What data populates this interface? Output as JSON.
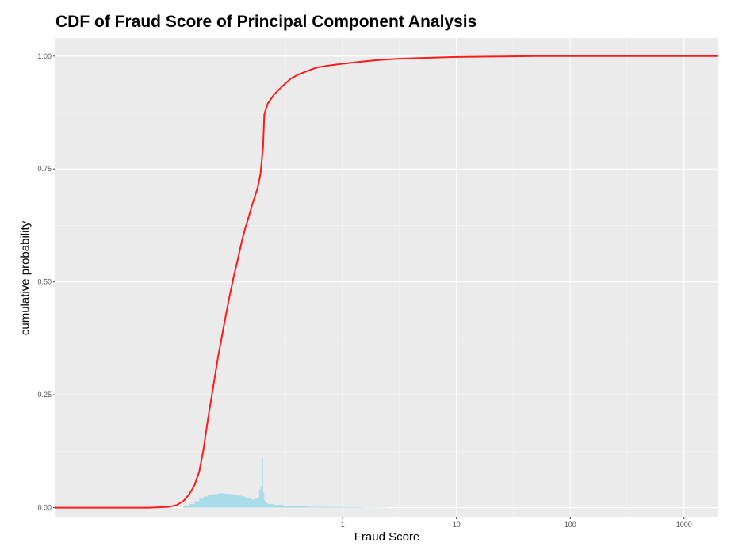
{
  "chart_data": {
    "type": "line",
    "title": "CDF of Fraud Score of Principal Component Analysis",
    "xlabel": "Fraud Score",
    "ylabel": "cumulative probability",
    "x_scale": "log10",
    "xlim": [
      0.003,
      2000
    ],
    "ylim": [
      -0.02,
      1.04
    ],
    "x_ticks": [
      {
        "value": 1,
        "label": "1"
      },
      {
        "value": 10,
        "label": "10"
      },
      {
        "value": 100,
        "label": "100"
      },
      {
        "value": 1000,
        "label": "1000"
      }
    ],
    "y_ticks": [
      {
        "value": 0,
        "label": "0.00"
      },
      {
        "value": 0.25,
        "label": "0.25"
      },
      {
        "value": 0.5,
        "label": "0.50"
      },
      {
        "value": 0.75,
        "label": "0.75"
      },
      {
        "value": 1,
        "label": "1.00"
      }
    ],
    "grid": true,
    "background": "#ebebeb",
    "series": [
      {
        "type": "line",
        "color": "#ff1a1a",
        "x": [
          0.003,
          0.02,
          0.03,
          0.035,
          0.04,
          0.045,
          0.05,
          0.055,
          0.06,
          0.065,
          0.07,
          0.08,
          0.09,
          0.1,
          0.11,
          0.12,
          0.13,
          0.14,
          0.15,
          0.16,
          0.17,
          0.18,
          0.19,
          0.2,
          0.205,
          0.21,
          0.22,
          0.25,
          0.3,
          0.35,
          0.4,
          0.5,
          0.6,
          0.8,
          1.0,
          1.5,
          2,
          3,
          5,
          10,
          20,
          50,
          100,
          1000,
          2000
        ],
        "y": [
          0.0,
          0.0,
          0.002,
          0.006,
          0.015,
          0.03,
          0.05,
          0.08,
          0.13,
          0.19,
          0.24,
          0.33,
          0.4,
          0.46,
          0.51,
          0.55,
          0.59,
          0.62,
          0.645,
          0.67,
          0.69,
          0.71,
          0.74,
          0.8,
          0.87,
          0.88,
          0.895,
          0.915,
          0.935,
          0.95,
          0.958,
          0.968,
          0.975,
          0.98,
          0.983,
          0.988,
          0.991,
          0.994,
          0.996,
          0.998,
          0.999,
          1.0,
          1.0,
          1.0,
          1.0
        ]
      },
      {
        "type": "area",
        "color": "#a8dce8",
        "x": [
          0.035,
          0.04,
          0.045,
          0.05,
          0.055,
          0.06,
          0.065,
          0.07,
          0.08,
          0.09,
          0.1,
          0.11,
          0.12,
          0.13,
          0.14,
          0.15,
          0.16,
          0.17,
          0.18,
          0.185,
          0.19,
          0.195,
          0.2,
          0.205,
          0.21,
          0.22,
          0.25,
          0.3,
          0.4,
          0.5,
          0.7,
          1.0,
          1.5,
          2.0,
          2.5
        ],
        "y": [
          0.0,
          0.004,
          0.008,
          0.014,
          0.02,
          0.025,
          0.028,
          0.03,
          0.032,
          0.031,
          0.03,
          0.028,
          0.027,
          0.025,
          0.022,
          0.02,
          0.018,
          0.02,
          0.023,
          0.04,
          0.045,
          0.11,
          0.033,
          0.015,
          0.01,
          0.008,
          0.006,
          0.004,
          0.003,
          0.002,
          0.0015,
          0.001,
          0.0007,
          0.0004,
          0.0
        ]
      }
    ]
  }
}
